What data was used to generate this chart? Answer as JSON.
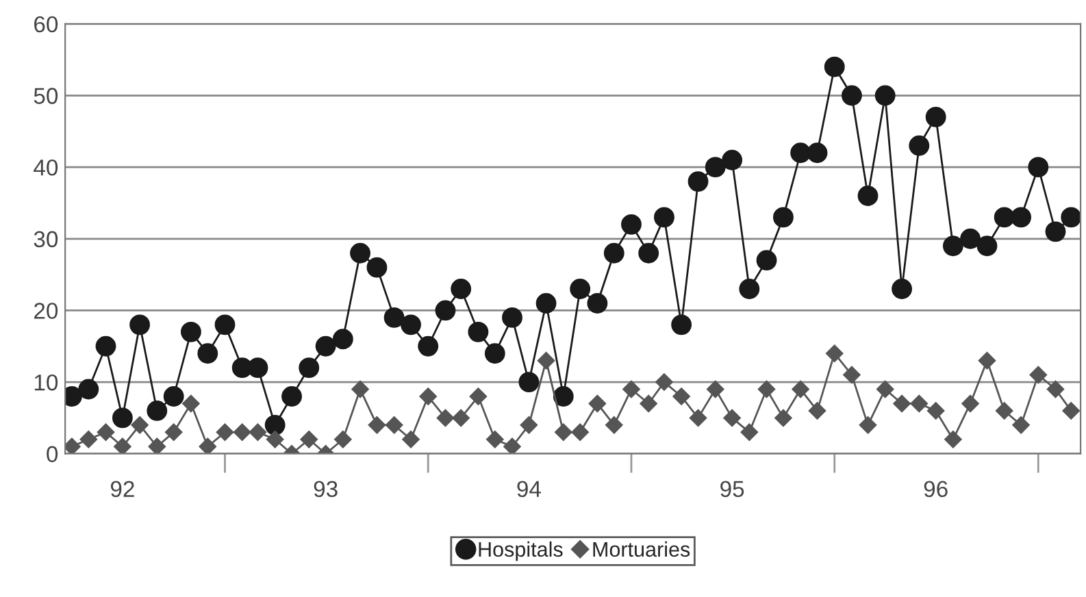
{
  "chart_data": {
    "type": "line",
    "x": [
      "1992-04",
      "1992-05",
      "1992-06",
      "1992-07",
      "1992-08",
      "1992-09",
      "1992-10",
      "1992-11",
      "1992-12",
      "1993-01",
      "1993-02",
      "1993-03",
      "1993-04",
      "1993-05",
      "1993-06",
      "1993-07",
      "1993-08",
      "1993-09",
      "1993-10",
      "1993-11",
      "1993-12",
      "1994-01",
      "1994-02",
      "1994-03",
      "1994-04",
      "1994-05",
      "1994-06",
      "1994-07",
      "1994-08",
      "1994-09",
      "1994-10",
      "1994-11",
      "1994-12",
      "1995-01",
      "1995-02",
      "1995-03",
      "1995-04",
      "1995-05",
      "1995-06",
      "1995-07",
      "1995-08",
      "1995-09",
      "1995-10",
      "1995-11",
      "1995-12",
      "1996-01",
      "1996-02",
      "1996-03",
      "1996-04",
      "1996-05",
      "1996-06",
      "1996-07",
      "1996-08",
      "1996-09",
      "1996-10",
      "1996-11",
      "1996-12",
      "1997-01",
      "1997-02",
      "1997-03"
    ],
    "series": [
      {
        "name": "Hospitals",
        "color": "#1a1a1a",
        "marker": "circle",
        "values": [
          8,
          9,
          15,
          5,
          18,
          6,
          8,
          17,
          14,
          18,
          12,
          12,
          4,
          8,
          12,
          15,
          16,
          28,
          26,
          19,
          18,
          15,
          20,
          23,
          17,
          14,
          19,
          10,
          21,
          8,
          23,
          21,
          28,
          32,
          28,
          33,
          18,
          38,
          40,
          41,
          23,
          27,
          33,
          42,
          42,
          54,
          50,
          36,
          50,
          23,
          43,
          47,
          29,
          30,
          29,
          33,
          33,
          40,
          31,
          33
        ]
      },
      {
        "name": "Mortuaries",
        "color": "#555555",
        "marker": "diamond",
        "values": [
          1,
          2,
          3,
          1,
          4,
          1,
          3,
          7,
          1,
          3,
          3,
          3,
          2,
          0,
          2,
          0,
          2,
          9,
          4,
          4,
          2,
          8,
          5,
          5,
          8,
          2,
          1,
          4,
          13,
          3,
          3,
          7,
          4,
          9,
          7,
          10,
          8,
          5,
          9,
          5,
          3,
          9,
          5,
          9,
          6,
          14,
          11,
          4,
          9,
          7,
          7,
          6,
          2,
          7,
          13,
          6,
          4,
          11,
          9,
          6
        ]
      }
    ],
    "xlim": [
      "1992-03-20",
      "1997-03-18"
    ],
    "xticks": [
      {
        "value": "1992-07-01",
        "label": "92"
      },
      {
        "value": "1993-07-01",
        "label": "93"
      },
      {
        "value": "1994-07-01",
        "label": "94"
      },
      {
        "value": "1995-07-01",
        "label": "95"
      },
      {
        "value": "1996-07-01",
        "label": "96"
      },
      {
        "value": "1993-01-01",
        "label": null
      },
      {
        "value": "1994-01-01",
        "label": null
      },
      {
        "value": "1995-01-01",
        "label": null
      },
      {
        "value": "1996-01-01",
        "label": null
      },
      {
        "value": "1997-01-01",
        "label": null
      }
    ],
    "ylim": [
      0,
      60
    ],
    "yticks": [
      0,
      10,
      20,
      30,
      40,
      50,
      60
    ],
    "grid": "y",
    "legend": "bottom",
    "line_style": "solid"
  }
}
